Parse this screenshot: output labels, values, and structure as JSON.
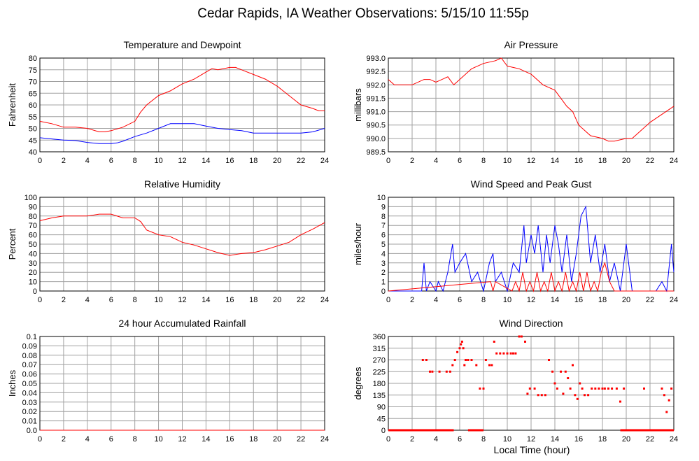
{
  "page": {
    "title": "Cedar Rapids, IA Weather Observations: 5/15/10 11:55p",
    "shared_xlabel": "Local Time (hour)"
  },
  "colors": {
    "red": "#ff0000",
    "blue": "#0000ff",
    "grid": "#a0a0a0"
  },
  "chart_data": [
    {
      "type": "line",
      "title": "Temperature and Dewpoint",
      "ylabel": "Fahrenheit",
      "xlim": [
        0,
        24
      ],
      "ylim": [
        40,
        80
      ],
      "xticks": [
        "0",
        "2",
        "4",
        "6",
        "8",
        "10",
        "12",
        "14",
        "16",
        "18",
        "20",
        "22",
        "24"
      ],
      "yticks": [
        "40",
        "45",
        "50",
        "55",
        "60",
        "65",
        "70",
        "75",
        "80"
      ],
      "grid": true,
      "series": [
        {
          "color": "#ff0000",
          "x": [
            0,
            1,
            2,
            3,
            4,
            5,
            5.5,
            6,
            7,
            8,
            8.5,
            9,
            10,
            11,
            12,
            13,
            14,
            14.5,
            15,
            16,
            16.5,
            17,
            18,
            19,
            20,
            21,
            22,
            23,
            23.5,
            24
          ],
          "y": [
            53,
            52,
            50.5,
            50.5,
            50,
            48.5,
            48.5,
            49,
            50.5,
            53,
            57,
            60,
            64,
            66,
            69,
            71,
            74,
            75.5,
            75,
            76,
            76,
            75,
            73,
            71,
            68,
            64,
            60,
            58.5,
            57.5,
            57.5
          ]
        },
        {
          "color": "#0000ff",
          "x": [
            0,
            1,
            2,
            3,
            4,
            5,
            6,
            6.5,
            7,
            8,
            9,
            10,
            11,
            12,
            13,
            14,
            15,
            16,
            17,
            18,
            19,
            20,
            21,
            22,
            23,
            24
          ],
          "y": [
            46,
            45.5,
            45,
            44.8,
            44,
            43.5,
            43.5,
            43.8,
            44.5,
            46.5,
            48,
            50,
            52,
            52,
            52,
            51,
            50,
            49.5,
            49,
            48,
            48,
            48,
            48,
            48,
            48.5,
            50
          ]
        }
      ]
    },
    {
      "type": "line",
      "title": "Air Pressure",
      "ylabel": "millibars",
      "xlim": [
        0,
        24
      ],
      "ylim": [
        989.5,
        993.0
      ],
      "xticks": [
        "0",
        "2",
        "4",
        "6",
        "8",
        "10",
        "12",
        "14",
        "16",
        "18",
        "20",
        "22",
        "24"
      ],
      "yticks": [
        "989.5",
        "990.0",
        "990.5",
        "991.0",
        "991.5",
        "992.0",
        "992.5",
        "993.0"
      ],
      "grid": true,
      "series": [
        {
          "color": "#ff0000",
          "x": [
            0,
            0.5,
            1,
            2,
            3,
            3.5,
            4,
            5,
            5.5,
            6,
            7,
            8,
            9,
            9.5,
            10,
            11,
            12,
            13,
            14,
            15,
            15.5,
            16,
            17,
            18,
            18.5,
            19,
            20,
            20.5,
            21,
            22,
            23,
            24
          ],
          "y": [
            992.2,
            992.0,
            992.0,
            992.0,
            992.2,
            992.2,
            992.1,
            992.3,
            992.0,
            992.2,
            992.6,
            992.8,
            992.9,
            993.0,
            992.7,
            992.6,
            992.4,
            992.0,
            991.8,
            991.2,
            991.0,
            990.5,
            990.1,
            990.0,
            989.9,
            989.9,
            990.0,
            990.0,
            990.2,
            990.6,
            990.9,
            991.2
          ]
        }
      ]
    },
    {
      "type": "line",
      "title": "Relative Humidity",
      "ylabel": "Percent",
      "xlim": [
        0,
        24
      ],
      "ylim": [
        0,
        100
      ],
      "xticks": [
        "0",
        "2",
        "4",
        "6",
        "8",
        "10",
        "12",
        "14",
        "16",
        "18",
        "20",
        "22",
        "24"
      ],
      "yticks": [
        "0",
        "10",
        "20",
        "30",
        "40",
        "50",
        "60",
        "70",
        "80",
        "90",
        "100"
      ],
      "grid": true,
      "series": [
        {
          "color": "#ff0000",
          "x": [
            0,
            1,
            2,
            3,
            4,
            5,
            6,
            7,
            8,
            8.5,
            9,
            10,
            11,
            12,
            13,
            14,
            15,
            16,
            17,
            18,
            19,
            20,
            21,
            22,
            23,
            24
          ],
          "y": [
            75,
            78,
            80,
            80,
            80,
            82,
            82,
            78,
            78,
            74,
            65,
            60,
            58,
            52,
            49,
            45,
            41,
            38,
            40,
            41,
            44,
            48,
            52,
            60,
            66,
            73
          ]
        }
      ]
    },
    {
      "type": "line",
      "title": "Wind Speed and Peak Gust",
      "ylabel": "miles/hour",
      "xlim": [
        0,
        24
      ],
      "ylim": [
        0,
        10
      ],
      "xticks": [
        "0",
        "2",
        "4",
        "6",
        "8",
        "10",
        "12",
        "14",
        "16",
        "18",
        "20",
        "22",
        "24"
      ],
      "yticks": [
        "0",
        "1",
        "2",
        "3",
        "4",
        "5",
        "6",
        "7",
        "8",
        "9",
        "10"
      ],
      "grid": true,
      "series": [
        {
          "color": "#0000ff",
          "x": [
            0,
            2.8,
            3.0,
            3.2,
            3.5,
            4.0,
            4.2,
            4.6,
            5.0,
            5.4,
            5.6,
            6.0,
            6.5,
            7.0,
            7.5,
            8.0,
            8.5,
            8.8,
            9.0,
            9.5,
            10.0,
            10.5,
            11.0,
            11.4,
            11.6,
            12.0,
            12.3,
            12.6,
            13.0,
            13.3,
            13.6,
            14.0,
            14.3,
            14.6,
            15.0,
            15.4,
            15.8,
            16.2,
            16.6,
            17.0,
            17.4,
            17.8,
            18.2,
            18.6,
            19.0,
            19.5,
            20.0,
            20.5,
            21.0,
            22.0,
            22.5,
            23.0,
            23.4,
            23.8,
            24.0
          ],
          "y": [
            0,
            0,
            3,
            0,
            1,
            0,
            1,
            0,
            2,
            5,
            2,
            3,
            4,
            1,
            2,
            0,
            3,
            4,
            1,
            2,
            0,
            3,
            2,
            7,
            3,
            6,
            4,
            7,
            2,
            6,
            3,
            7,
            5,
            2,
            6,
            1,
            4,
            8,
            9,
            3,
            6,
            2,
            5,
            1,
            3,
            0,
            5,
            0,
            0,
            0,
            0,
            1,
            0,
            5,
            2
          ]
        },
        {
          "color": "#ff0000",
          "x": [
            0,
            8.6,
            8.8,
            9.0,
            10.4,
            10.7,
            11.0,
            11.3,
            11.6,
            11.9,
            12.2,
            12.5,
            12.8,
            13.1,
            13.4,
            13.7,
            14.0,
            14.3,
            14.6,
            14.9,
            15.2,
            15.5,
            15.8,
            16.1,
            16.4,
            16.7,
            17.0,
            17.3,
            17.6,
            17.9,
            18.2,
            18.6,
            19.0,
            24.0
          ],
          "y": [
            0,
            1,
            0,
            1,
            0,
            1,
            0,
            2,
            0,
            1,
            0,
            2,
            0,
            1,
            0,
            2,
            0,
            1,
            0,
            2,
            0,
            1,
            0,
            2,
            0,
            2,
            0,
            1,
            0,
            2,
            3,
            1,
            0,
            0
          ]
        }
      ]
    },
    {
      "type": "line",
      "title": "24 hour Accumulated Rainfall",
      "ylabel": "Inches",
      "xlim": [
        0,
        24
      ],
      "ylim": [
        0,
        0.1
      ],
      "xticks": [
        "0",
        "2",
        "4",
        "6",
        "8",
        "10",
        "12",
        "14",
        "16",
        "18",
        "20",
        "22",
        "24"
      ],
      "yticks": [
        "0.0",
        "0.01",
        "0.02",
        "0.03",
        "0.04",
        "0.05",
        "0.06",
        "0.07",
        "0.08",
        "0.09",
        "0.1"
      ],
      "grid": true,
      "series": [
        {
          "color": "#ff0000",
          "x": [
            0,
            24
          ],
          "y": [
            0,
            0
          ]
        }
      ]
    },
    {
      "type": "scatter",
      "title": "Wind Direction",
      "ylabel": "degrees",
      "xlabel": "Local Time (hour)",
      "xlim": [
        0,
        24
      ],
      "ylim": [
        0,
        360
      ],
      "xticks": [
        "0",
        "2",
        "4",
        "6",
        "8",
        "10",
        "12",
        "14",
        "16",
        "18",
        "20",
        "22",
        "24"
      ],
      "yticks": [
        "0",
        "45",
        "90",
        "135",
        "180",
        "225",
        "270",
        "315",
        "360"
      ],
      "grid": true,
      "series": [
        {
          "color": "#ff0000",
          "x": [
            2.9,
            3.2,
            3.5,
            3.7,
            4.3,
            4.9,
            5.2,
            5.4,
            5.6,
            5.8,
            6.0,
            6.1,
            6.2,
            6.3,
            6.4,
            6.5,
            6.7,
            7.0,
            7.4,
            7.7,
            8.0,
            8.2,
            8.5,
            8.7,
            8.9,
            9.1,
            9.4,
            9.7,
            10.0,
            10.3,
            10.5,
            10.7,
            11.0,
            11.2,
            11.5,
            11.7,
            11.9,
            12.3,
            12.6,
            12.9,
            13.2,
            13.5,
            13.8,
            14.0,
            14.2,
            14.5,
            14.7,
            14.9,
            15.1,
            15.3,
            15.5,
            15.7,
            15.9,
            16.1,
            16.3,
            16.5,
            16.8,
            17.1,
            17.4,
            17.7,
            18.0,
            18.2,
            18.5,
            18.8,
            19.2,
            19.5,
            19.8,
            21.5,
            23.0,
            23.2,
            23.4,
            23.6,
            23.8
          ],
          "y": [
            270,
            270,
            225,
            225,
            225,
            225,
            225,
            250,
            270,
            300,
            315,
            330,
            340,
            315,
            250,
            270,
            270,
            270,
            250,
            160,
            160,
            270,
            250,
            250,
            340,
            295,
            295,
            295,
            295,
            295,
            295,
            295,
            360,
            360,
            340,
            140,
            160,
            160,
            135,
            135,
            135,
            270,
            225,
            180,
            160,
            225,
            140,
            225,
            200,
            160,
            250,
            135,
            120,
            180,
            160,
            135,
            135,
            160,
            160,
            160,
            160,
            160,
            160,
            160,
            160,
            110,
            160,
            160,
            160,
            135,
            70,
            115,
            160
          ]
        }
      ]
    }
  ]
}
